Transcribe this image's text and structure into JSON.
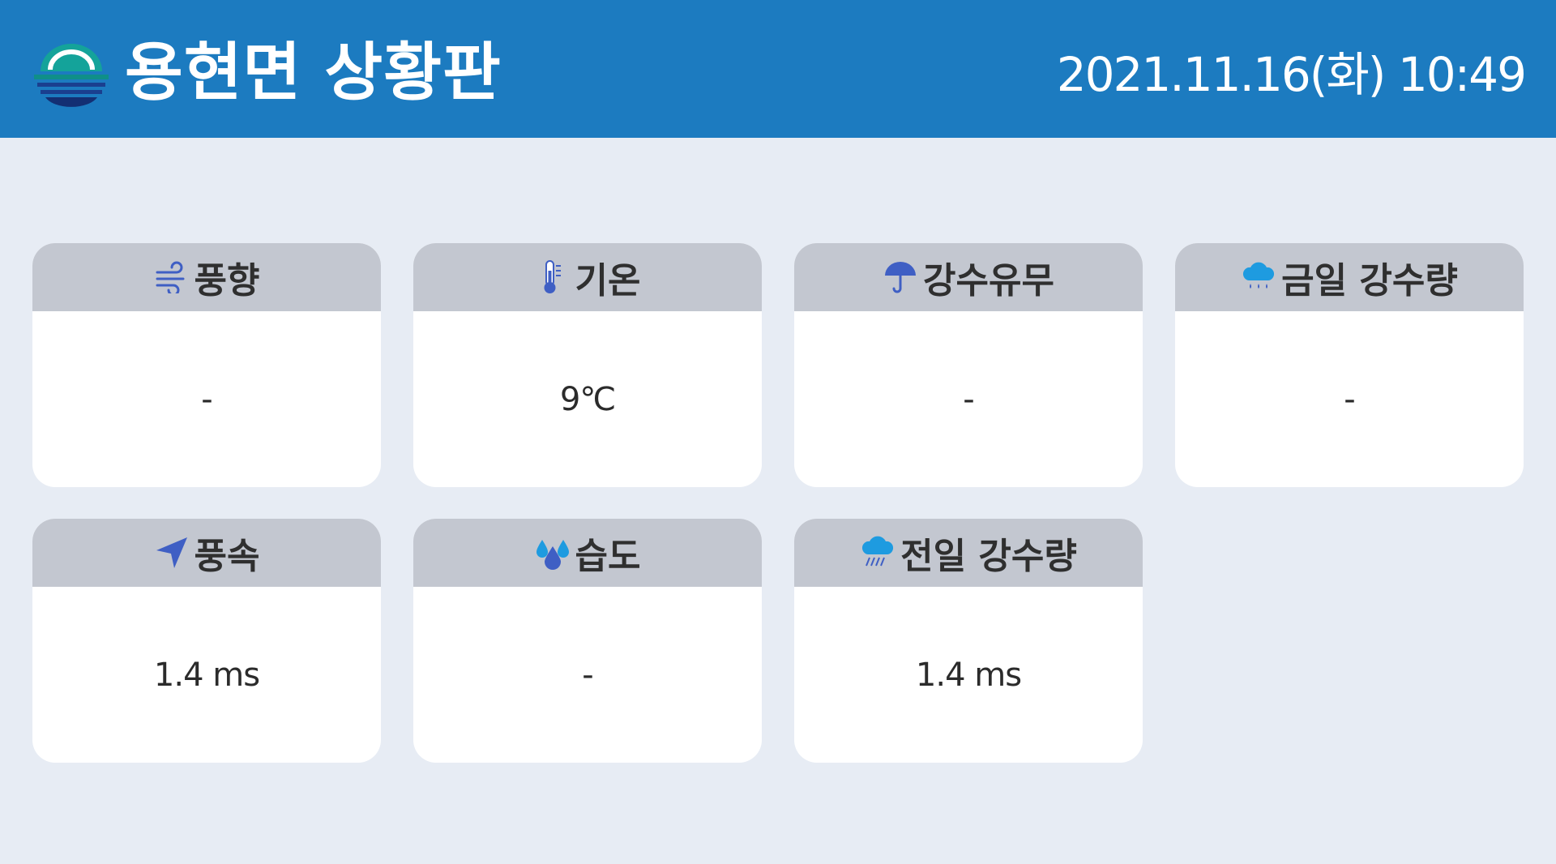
{
  "header": {
    "title": "용현면 상황판",
    "datetime": "2021.11.16(화) 10:49",
    "background_color": "#1c7bc0"
  },
  "cards": [
    {
      "label": "풍향",
      "icon": "wind-icon",
      "value": "-"
    },
    {
      "label": "기온",
      "icon": "thermometer-icon",
      "value": "9℃"
    },
    {
      "label": "강수유무",
      "icon": "umbrella-icon",
      "value": "-"
    },
    {
      "label": "금일 강수량",
      "icon": "rain-cloud-icon",
      "value": "-"
    },
    {
      "label": "풍속",
      "icon": "navigation-arrow-icon",
      "value": "1.4 ms"
    },
    {
      "label": "습도",
      "icon": "water-drops-icon",
      "value": "-"
    },
    {
      "label": "전일 강수량",
      "icon": "heavy-rain-cloud-icon",
      "value": "1.4 ms"
    }
  ],
  "colors": {
    "page_background": "#e7ecf4",
    "card_header": "#c3c7d0",
    "icon_blue": "#3f5fc4",
    "icon_sky": "#1e9be0"
  }
}
